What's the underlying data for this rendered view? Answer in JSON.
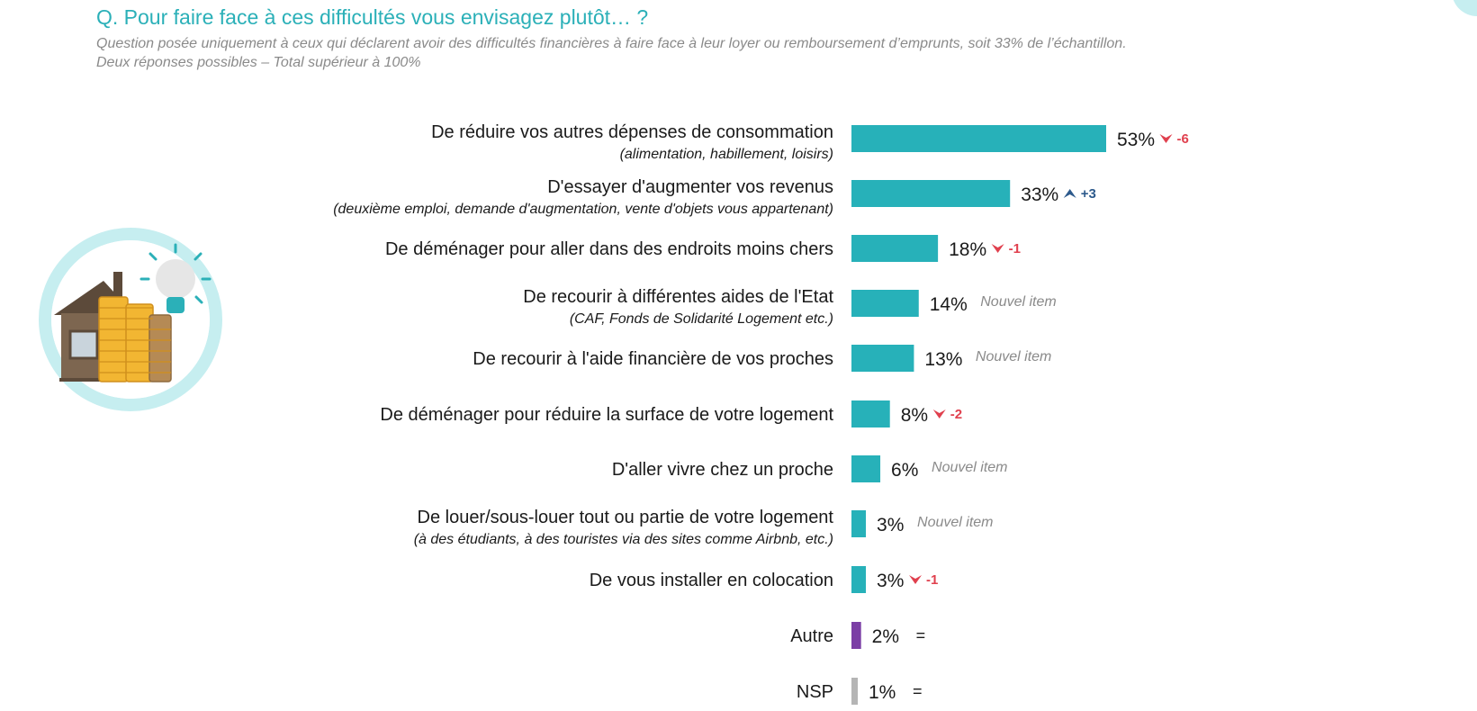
{
  "header": {
    "title": "Q. Pour faire face à ces difficultés vous envisagez plutôt… ?",
    "subtitle_line1": "Question posée uniquement à ceux qui déclarent avoir des difficultés financières à faire face à leur loyer ou remboursement d’emprunts, soit 33% de l’échantillon.",
    "subtitle_line2": "Deux réponses possibles – Total supérieur à 100%"
  },
  "illustration": {
    "icon": "house-coins-lightbulb-icon",
    "circle_color": "#c6eef0"
  },
  "colors": {
    "bar": "#27b1b9",
    "bar_autre": "#7b3ea5",
    "bar_nsp": "#b5b5b5",
    "down": "#e0404e",
    "up": "#2d5a8c"
  },
  "chart_data": {
    "type": "bar",
    "orientation": "horizontal",
    "unit": "%",
    "categories": [
      "De réduire vos autres dépenses de consommation",
      "D'essayer d'augmenter vos revenus",
      "De déménager pour aller dans des endroits moins chers",
      "De recourir à différentes aides de l'Etat",
      "De recourir à l'aide financière de vos proches",
      "De déménager pour réduire la surface de votre logement",
      "D'aller vivre chez un proche",
      "De louer/sous-louer tout ou partie de votre logement",
      "De vous installer en colocation",
      "Autre",
      "NSP"
    ],
    "sublabels": [
      "(alimentation, habillement, loisirs)",
      "(deuxième emploi, demande d'augmentation, vente d'objets vous appartenant)",
      "",
      "(CAF, Fonds de Solidarité Logement etc.)",
      "",
      "",
      "",
      "(à des étudiants, à des touristes via des sites comme Airbnb, etc.)",
      "",
      "",
      ""
    ],
    "values": [
      53,
      33,
      18,
      14,
      13,
      8,
      6,
      3,
      3,
      2,
      1
    ],
    "value_labels": [
      "53%",
      "33%",
      "18%",
      "14%",
      "13%",
      "8%",
      "6%",
      "3%",
      "3%",
      "2%",
      "1%"
    ],
    "trend": [
      {
        "direction": "down",
        "text": "-6"
      },
      {
        "direction": "up",
        "text": "+3"
      },
      {
        "direction": "down",
        "text": "-1"
      },
      {
        "direction": "new",
        "text": "Nouvel item"
      },
      {
        "direction": "new",
        "text": "Nouvel item"
      },
      {
        "direction": "down",
        "text": "-2"
      },
      {
        "direction": "new",
        "text": "Nouvel item"
      },
      {
        "direction": "new",
        "text": "Nouvel item"
      },
      {
        "direction": "down",
        "text": "-1"
      },
      {
        "direction": "equal",
        "text": "="
      },
      {
        "direction": "equal",
        "text": "="
      }
    ],
    "bar_color_keys": [
      "bar",
      "bar",
      "bar",
      "bar",
      "bar",
      "bar",
      "bar",
      "bar",
      "bar",
      "bar_autre",
      "bar_nsp"
    ],
    "xlim": [
      0,
      53
    ],
    "grid": false,
    "legend": "none"
  }
}
